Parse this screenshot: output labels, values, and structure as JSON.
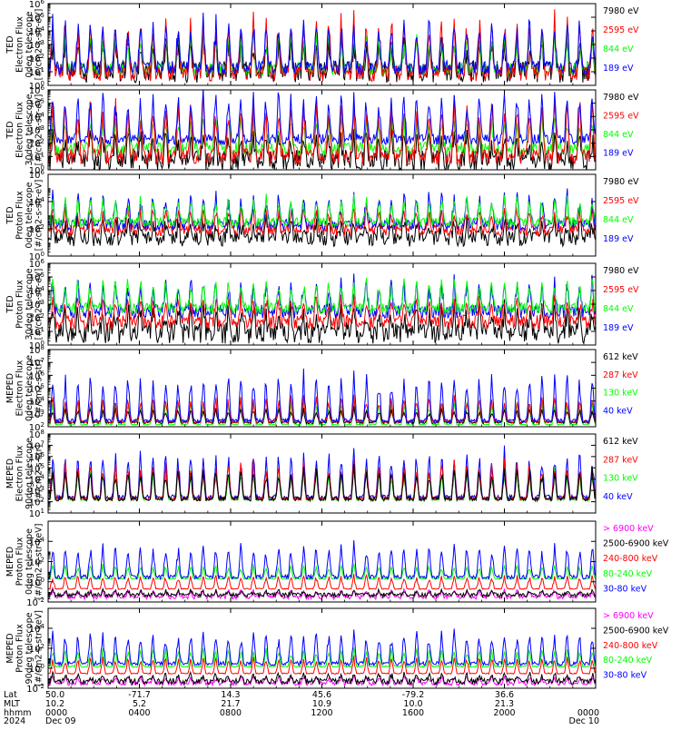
{
  "colors": {
    "black": "#000000",
    "red": "#ff0000",
    "green": "#00ff00",
    "blue": "#0000ff",
    "magenta": "#ff00ff"
  },
  "chart_data": [
    {
      "type": "line",
      "ylabel": [
        "TED",
        "Electron Flux",
        "0deg telescope",
        "[#/cm2-s-str-eV]"
      ],
      "yscale": "log",
      "ylim": [
        1,
        1000000
      ],
      "yticks": [
        {
          "v": 1,
          "t": "10",
          "e": "0"
        },
        {
          "v": 10,
          "t": "10",
          "e": "1"
        },
        {
          "v": 100,
          "t": "10",
          "e": "2"
        },
        {
          "v": 1000,
          "t": "10",
          "e": "3"
        },
        {
          "v": 10000,
          "t": "10",
          "e": "4"
        },
        {
          "v": 100000,
          "t": "10",
          "e": "5"
        },
        {
          "v": 1000000,
          "t": "10",
          "e": "6"
        }
      ],
      "legend": [
        {
          "label": "7980 eV",
          "color": "#000000"
        },
        {
          "label": "2595 eV",
          "color": "#ff0000"
        },
        {
          "label": "844 eV",
          "color": "#00ff00"
        },
        {
          "label": "189 eV",
          "color": "#0000ff"
        }
      ],
      "series": [
        {
          "color": "#000000",
          "base": 10,
          "spread": 0.8,
          "peak": 2.5
        },
        {
          "color": "#00ff00",
          "base": 15,
          "spread": 0.5,
          "peak": 2.8
        },
        {
          "color": "#ff0000",
          "base": 8,
          "spread": 0.6,
          "peak": 4.5
        },
        {
          "color": "#0000ff",
          "base": 20,
          "spread": 0.5,
          "peak": 3.8
        }
      ]
    },
    {
      "type": "line",
      "ylabel": [
        "TED",
        "Electron Flux",
        "30deg telescope",
        "[#/cm2-s-str-eV]"
      ],
      "yscale": "log",
      "ylim": [
        1,
        1000000
      ],
      "yticks": [
        {
          "v": 1,
          "t": "10",
          "e": "0"
        },
        {
          "v": 10,
          "t": "10",
          "e": "1"
        },
        {
          "v": 100,
          "t": "10",
          "e": "2"
        },
        {
          "v": 1000,
          "t": "10",
          "e": "3"
        },
        {
          "v": 10000,
          "t": "10",
          "e": "4"
        },
        {
          "v": 100000,
          "t": "10",
          "e": "5"
        },
        {
          "v": 1000000,
          "t": "10",
          "e": "6"
        }
      ],
      "legend": [
        {
          "label": "7980 eV",
          "color": "#000000"
        },
        {
          "label": "2595 eV",
          "color": "#ff0000"
        },
        {
          "label": "844 eV",
          "color": "#00ff00"
        },
        {
          "label": "189 eV",
          "color": "#0000ff"
        }
      ],
      "series": [
        {
          "color": "#000000",
          "base": 5,
          "spread": 0.8,
          "peak": 2.2
        },
        {
          "color": "#00ff00",
          "base": 40,
          "spread": 0.5,
          "peak": 2.6
        },
        {
          "color": "#ff0000",
          "base": 10,
          "spread": 0.6,
          "peak": 4.5
        },
        {
          "color": "#0000ff",
          "base": 200,
          "spread": 0.4,
          "peak": 3.8
        }
      ]
    },
    {
      "type": "line",
      "ylabel": [
        "TED",
        "Proton Flux",
        "0deg telescope",
        "[#/cm2-s-str-eV]"
      ],
      "yscale": "log",
      "ylim": [
        1,
        1000000
      ],
      "yticks": [
        {
          "v": 1,
          "t": "10",
          "e": "0"
        },
        {
          "v": 100,
          "t": "10",
          "e": "2"
        },
        {
          "v": 10000,
          "t": "10",
          "e": "4"
        },
        {
          "v": 1000000,
          "t": "10",
          "e": "6"
        }
      ],
      "legend": [
        {
          "label": "7980 eV",
          "color": "#000000"
        },
        {
          "label": "2595 eV",
          "color": "#ff0000"
        },
        {
          "label": "844 eV",
          "color": "#00ff00"
        },
        {
          "label": "189 eV",
          "color": "#0000ff"
        }
      ],
      "series": [
        {
          "color": "#000000",
          "base": 20,
          "spread": 0.6,
          "peak": 1.5
        },
        {
          "color": "#ff0000",
          "base": 80,
          "spread": 0.4,
          "peak": 1.8
        },
        {
          "color": "#0000ff",
          "base": 200,
          "spread": 0.4,
          "peak": 2.5
        },
        {
          "color": "#00ff00",
          "base": 300,
          "spread": 0.35,
          "peak": 2.0
        }
      ]
    },
    {
      "type": "line",
      "ylabel": [
        "TED",
        "Proton Flux",
        "30deg telescope",
        "[#/cm2-s-str-eV]"
      ],
      "yscale": "log",
      "ylim": [
        1,
        1000000
      ],
      "yticks": [
        {
          "v": 1,
          "t": "10",
          "e": "0"
        },
        {
          "v": 10,
          "t": "10",
          "e": "1"
        },
        {
          "v": 100,
          "t": "10",
          "e": "2"
        },
        {
          "v": 1000,
          "t": "10",
          "e": "3"
        },
        {
          "v": 10000,
          "t": "10",
          "e": "4"
        },
        {
          "v": 100000,
          "t": "10",
          "e": "5"
        },
        {
          "v": 1000000,
          "t": "10",
          "e": "6"
        }
      ],
      "legend": [
        {
          "label": "7980 eV",
          "color": "#000000"
        },
        {
          "label": "2595 eV",
          "color": "#ff0000"
        },
        {
          "label": "844 eV",
          "color": "#00ff00"
        },
        {
          "label": "189 eV",
          "color": "#0000ff"
        }
      ],
      "series": [
        {
          "color": "#000000",
          "base": 8,
          "spread": 0.8,
          "peak": 2.0
        },
        {
          "color": "#ff0000",
          "base": 50,
          "spread": 0.5,
          "peak": 2.0
        },
        {
          "color": "#0000ff",
          "base": 300,
          "spread": 0.5,
          "peak": 2.5
        },
        {
          "color": "#00ff00",
          "base": 500,
          "spread": 0.4,
          "peak": 2.3
        }
      ]
    },
    {
      "type": "line",
      "ylabel": [
        "MEPED",
        "Electron Flux",
        "0deg telescope",
        "[#/cm2-s-str]"
      ],
      "yscale": "log",
      "ylim": [
        100,
        100000000
      ],
      "yticks": [
        {
          "v": 100,
          "t": "10",
          "e": "2"
        },
        {
          "v": 1000,
          "t": "10",
          "e": "3"
        },
        {
          "v": 10000,
          "t": "10",
          "e": "4"
        },
        {
          "v": 100000,
          "t": "10",
          "e": "5"
        },
        {
          "v": 1000000,
          "t": "10",
          "e": "6"
        },
        {
          "v": 10000000,
          "t": "10",
          "e": "7"
        },
        {
          "v": 100000000,
          "t": "10",
          "e": "8"
        }
      ],
      "legend": [
        {
          "label": "612 keV",
          "color": "#000000"
        },
        {
          "label": "287 keV",
          "color": "#ff0000"
        },
        {
          "label": "130 keV",
          "color": "#00ff00"
        },
        {
          "label": "40 keV",
          "color": "#0000ff"
        }
      ],
      "series": [
        {
          "color": "#00ff00",
          "base": 150,
          "spread": 0.05,
          "peak": 2.0
        },
        {
          "color": "#000000",
          "base": 220,
          "spread": 0.1,
          "peak": 1.2
        },
        {
          "color": "#ff0000",
          "base": 250,
          "spread": 0.1,
          "peak": 2.2
        },
        {
          "color": "#0000ff",
          "base": 300,
          "spread": 0.15,
          "peak": 4.0
        }
      ]
    },
    {
      "type": "line",
      "ylabel": [
        "MEPED",
        "Electron Flux",
        "90deg telescope",
        "[#/cm2-s-str]"
      ],
      "yscale": "log",
      "ylim": [
        10,
        100000000
      ],
      "yticks": [
        {
          "v": 10,
          "t": "10",
          "e": "1"
        },
        {
          "v": 100,
          "t": "10",
          "e": "2"
        },
        {
          "v": 1000,
          "t": "10",
          "e": "3"
        },
        {
          "v": 10000,
          "t": "10",
          "e": "4"
        },
        {
          "v": 100000,
          "t": "10",
          "e": "5"
        },
        {
          "v": 1000000,
          "t": "10",
          "e": "6"
        },
        {
          "v": 10000000,
          "t": "10",
          "e": "7"
        },
        {
          "v": 100000000,
          "t": "10",
          "e": "8"
        }
      ],
      "legend": [
        {
          "label": "612 keV",
          "color": "#000000"
        },
        {
          "label": "287 keV",
          "color": "#ff0000"
        },
        {
          "label": "130 keV",
          "color": "#00ff00"
        },
        {
          "label": "40 keV",
          "color": "#0000ff"
        }
      ],
      "series": [
        {
          "color": "#00ff00",
          "base": 150,
          "spread": 0.05,
          "peak": 3.0
        },
        {
          "color": "#0000ff",
          "base": 250,
          "spread": 0.2,
          "peak": 4.5
        },
        {
          "color": "#ff0000",
          "base": 200,
          "spread": 0.15,
          "peak": 3.5
        },
        {
          "color": "#000000",
          "base": 180,
          "spread": 0.2,
          "peak": 3.0
        }
      ]
    },
    {
      "type": "line",
      "ylabel": [
        "MEPED",
        "Proton Flux",
        "0deg telescope",
        "[#/cm2-s-str-keV]"
      ],
      "yscale": "log",
      "ylim": [
        0.01,
        1000000
      ],
      "yticks": [
        {
          "v": 0.01,
          "t": "10",
          "e": "-2"
        },
        {
          "v": 1,
          "t": "10",
          "e": "0"
        },
        {
          "v": 100,
          "t": "10",
          "e": "2"
        },
        {
          "v": 10000,
          "t": "10",
          "e": "4"
        }
      ],
      "legend": [
        {
          "label": "> 6900 keV",
          "color": "#ff00ff"
        },
        {
          "label": "2500-6900 keV",
          "color": "#000000"
        },
        {
          "label": "240-800 keV",
          "color": "#ff0000"
        },
        {
          "label": "80-240 keV",
          "color": "#00ff00"
        },
        {
          "label": "30-80 keV",
          "color": "#0000ff"
        }
      ],
      "series": [
        {
          "color": "#ff0000",
          "base": 0.2,
          "spread": 0.05,
          "peak": 1.5
        },
        {
          "color": "#00ff00",
          "base": 2,
          "spread": 0.05,
          "peak": 1.5
        },
        {
          "color": "#0000ff",
          "base": 3,
          "spread": 0.2,
          "peak": 3.5
        },
        {
          "color": "#ff00ff",
          "base": 0.03,
          "spread": 0.2,
          "peak": 0.8
        },
        {
          "color": "#000000",
          "base": 0.05,
          "spread": 0.2,
          "peak": 0.5
        }
      ]
    },
    {
      "type": "line",
      "ylabel": [
        "MEPED",
        "Proton Flux",
        "90deg telescope",
        "[#/cm2-s-str-keV]"
      ],
      "yscale": "log",
      "ylim": [
        0.01,
        1000000
      ],
      "yticks": [
        {
          "v": 0.01,
          "t": "10",
          "e": "-2"
        },
        {
          "v": 1,
          "t": "10",
          "e": "0"
        },
        {
          "v": 100,
          "t": "10",
          "e": "2"
        },
        {
          "v": 10000,
          "t": "10",
          "e": "4"
        }
      ],
      "legend": [
        {
          "label": "> 6900 keV",
          "color": "#ff00ff"
        },
        {
          "label": "2500-6900 keV",
          "color": "#000000"
        },
        {
          "label": "240-800 keV",
          "color": "#ff0000"
        },
        {
          "label": "80-240 keV",
          "color": "#00ff00"
        },
        {
          "label": "30-80 keV",
          "color": "#0000ff"
        }
      ],
      "series": [
        {
          "color": "#ff0000",
          "base": 0.3,
          "spread": 0.05,
          "peak": 1.8
        },
        {
          "color": "#00ff00",
          "base": 1.5,
          "spread": 0.08,
          "peak": 2.0
        },
        {
          "color": "#0000ff",
          "base": 3,
          "spread": 0.2,
          "peak": 3.5
        },
        {
          "color": "#ff00ff",
          "base": 0.03,
          "spread": 0.2,
          "peak": 0.8
        },
        {
          "color": "#000000",
          "base": 0.05,
          "spread": 0.3,
          "peak": 0.8
        }
      ]
    }
  ],
  "xaxis": {
    "row_labels": [
      "Lat",
      "MLT",
      "hhmm",
      "2024"
    ],
    "ticks": [
      {
        "lat": "50.0",
        "mlt": "10.2",
        "hhmm": "0000",
        "date": "Dec 09"
      },
      {
        "lat": "-71.7",
        "mlt": "5.2",
        "hhmm": "0400",
        "date": ""
      },
      {
        "lat": "14.3",
        "mlt": "21.7",
        "hhmm": "0800",
        "date": ""
      },
      {
        "lat": "45.6",
        "mlt": "10.9",
        "hhmm": "1200",
        "date": ""
      },
      {
        "lat": "-79.2",
        "mlt": "10.0",
        "hhmm": "1600",
        "date": ""
      },
      {
        "lat": "36.6",
        "mlt": "21.3",
        "hhmm": "2000",
        "date": ""
      },
      {
        "lat": "",
        "mlt": "",
        "hhmm": "0000",
        "date": "Dec 10"
      }
    ],
    "x_hours": [
      0,
      4,
      8,
      12,
      16,
      20,
      24
    ],
    "xlim": [
      0,
      24
    ]
  }
}
